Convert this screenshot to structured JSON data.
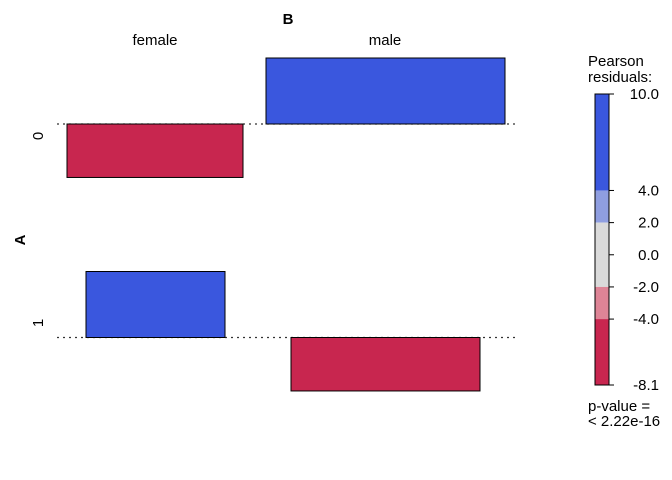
{
  "chart_data": {
    "type": "association_plot",
    "title": "",
    "col_var": "B",
    "row_var": "A",
    "col_levels": [
      "female",
      "male"
    ],
    "row_levels": [
      "0",
      "1"
    ],
    "cells": [
      {
        "row": "0",
        "col": "female",
        "residual": -8.1
      },
      {
        "row": "0",
        "col": "male",
        "residual": 10.0
      },
      {
        "row": "1",
        "col": "female",
        "residual": 10.0
      },
      {
        "row": "1",
        "col": "male",
        "residual": -8.1
      }
    ],
    "legend": {
      "title_lines": [
        "Pearson",
        "residuals:"
      ],
      "ticks": [
        "10.0",
        "4.0",
        "2.0",
        "0.0",
        "-2.0",
        "-4.0",
        "-8.1"
      ],
      "tick_values": [
        10.0,
        4.0,
        2.0,
        0.0,
        -2.0,
        -4.0,
        -8.1
      ],
      "range": [
        -8.1,
        10.0
      ],
      "bands": [
        {
          "from": 4.0,
          "to": 10.0,
          "color": "#3A57DE"
        },
        {
          "from": 2.0,
          "to": 4.0,
          "color": "#8F9EE0"
        },
        {
          "from": -2.0,
          "to": 2.0,
          "color": "#DADADA"
        },
        {
          "from": -4.0,
          "to": -2.0,
          "color": "#DE8496"
        },
        {
          "from": -8.1,
          "to": -4.0,
          "color": "#C8264F"
        }
      ],
      "pvalue_lines": [
        "p-value =",
        "< 2.22e-16"
      ]
    },
    "colors": {
      "positive": "#3A57DE",
      "negative": "#C8264F"
    }
  }
}
